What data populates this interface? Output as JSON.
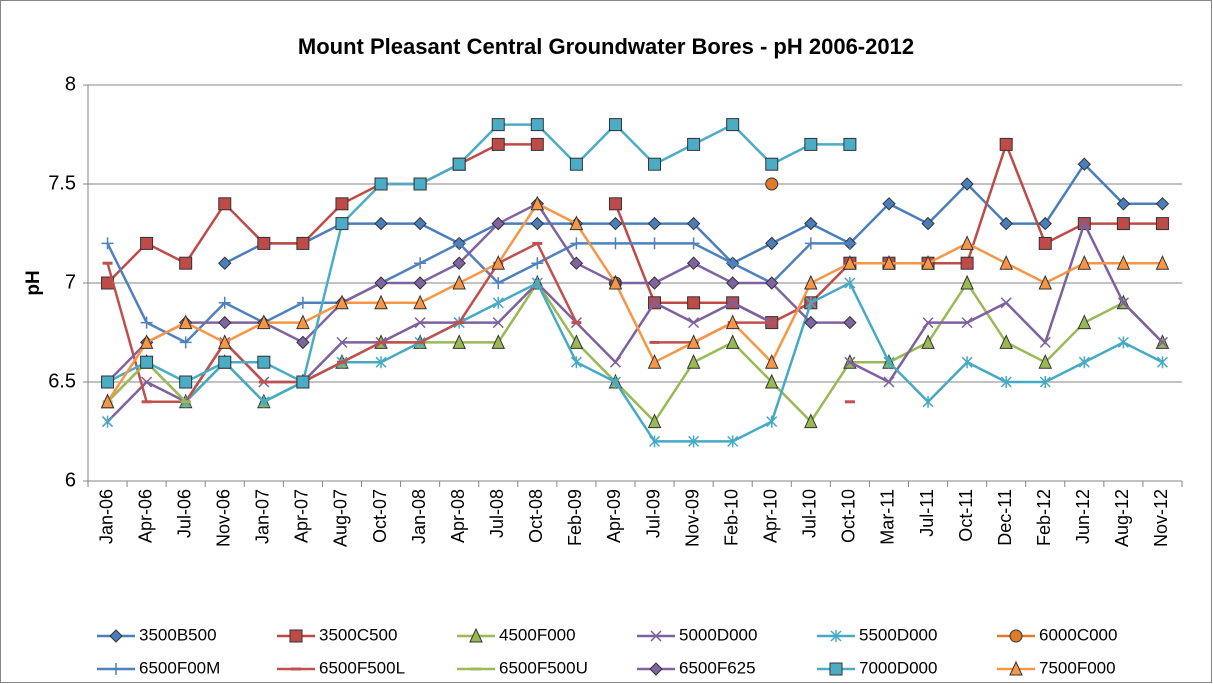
{
  "chart_data": {
    "type": "line",
    "title": "Mount Pleasant Central Groundwater Bores - pH 2006-2012",
    "y_label": "pH",
    "categories": [
      "Jan-06",
      "Apr-06",
      "Jul-06",
      "Nov-06",
      "Jan-07",
      "Apr-07",
      "Aug-07",
      "Oct-07",
      "Jan-08",
      "Apr-08",
      "Jul-08",
      "Oct-08",
      "Feb-09",
      "Apr-09",
      "Jul-09",
      "Nov-09",
      "Feb-10",
      "Apr-10",
      "Jul-10",
      "Oct-10",
      "Mar-11",
      "Jul-11",
      "Oct-11",
      "Dec-11",
      "Feb-12",
      "Jun-12",
      "Aug-12",
      "Nov-12"
    ],
    "ylim": [
      6,
      8
    ],
    "yticks": [
      6,
      6.5,
      7,
      7.5,
      8
    ],
    "grid": true,
    "legend": "bottom",
    "series": [
      {
        "name": "3500B500",
        "color": "#4a7ebb",
        "marker": "diamond",
        "values": [
          null,
          null,
          null,
          7.1,
          7.2,
          7.2,
          7.3,
          7.3,
          7.3,
          7.2,
          7.3,
          7.3,
          7.3,
          7.3,
          7.3,
          7.3,
          7.1,
          7.2,
          7.3,
          7.2,
          7.4,
          7.3,
          7.5,
          7.3,
          7.3,
          7.6,
          7.4,
          7.4
        ]
      },
      {
        "name": "3500C500",
        "color": "#be4b48",
        "marker": "square",
        "values": [
          7.0,
          7.2,
          7.1,
          7.4,
          7.2,
          7.2,
          7.4,
          7.5,
          7.5,
          7.6,
          7.7,
          7.7,
          null,
          7.4,
          6.9,
          6.9,
          6.9,
          6.8,
          6.9,
          7.1,
          7.1,
          7.1,
          7.1,
          7.7,
          7.2,
          7.3,
          7.3,
          7.3
        ]
      },
      {
        "name": "4500F000",
        "color": "#98b954",
        "marker": "triangle",
        "values": [
          6.4,
          6.6,
          6.4,
          6.6,
          6.4,
          6.5,
          6.6,
          6.7,
          6.7,
          6.7,
          6.7,
          7.0,
          6.7,
          6.5,
          6.3,
          6.6,
          6.7,
          6.5,
          6.3,
          6.6,
          6.6,
          6.7,
          7.0,
          6.7,
          6.6,
          6.8,
          6.9,
          6.7
        ]
      },
      {
        "name": "5000D000",
        "color": "#7d60a0",
        "marker": "x",
        "values": [
          6.3,
          6.5,
          6.4,
          6.7,
          6.5,
          6.5,
          6.7,
          6.7,
          6.8,
          6.8,
          6.8,
          7.0,
          6.8,
          6.6,
          6.9,
          6.8,
          6.9,
          6.8,
          null,
          6.6,
          6.5,
          6.8,
          6.8,
          6.9,
          6.7,
          7.3,
          6.9,
          6.7
        ]
      },
      {
        "name": "5500D000",
        "color": "#46aac5",
        "marker": "star",
        "values": [
          6.3,
          null,
          6.4,
          6.6,
          6.4,
          6.5,
          6.6,
          6.6,
          6.7,
          6.8,
          6.9,
          7.0,
          6.6,
          6.5,
          6.2,
          6.2,
          6.2,
          6.3,
          6.9,
          7.0,
          6.6,
          6.4,
          6.6,
          6.5,
          6.5,
          6.6,
          6.7,
          6.6
        ]
      },
      {
        "name": "6000C000",
        "color": "#e07b2e",
        "marker": "circle",
        "values": [
          null,
          null,
          null,
          null,
          null,
          null,
          null,
          null,
          null,
          null,
          null,
          null,
          null,
          7.0,
          null,
          null,
          null,
          7.5,
          null,
          null,
          null,
          null,
          null,
          null,
          null,
          null,
          null,
          null
        ]
      },
      {
        "name": "6500F00M",
        "color": "#4f81bd",
        "marker": "plus",
        "values": [
          7.2,
          6.8,
          6.7,
          6.9,
          6.8,
          6.9,
          6.9,
          7.0,
          7.1,
          7.2,
          7.0,
          7.1,
          7.2,
          7.2,
          7.2,
          7.2,
          7.1,
          7.0,
          7.2,
          7.2,
          null,
          null,
          null,
          null,
          null,
          null,
          null,
          null
        ]
      },
      {
        "name": "6500F500L",
        "color": "#c0504d",
        "marker": "dash",
        "values": [
          7.1,
          6.4,
          6.4,
          6.7,
          6.5,
          6.5,
          6.6,
          6.7,
          6.7,
          6.8,
          7.1,
          7.2,
          6.8,
          null,
          6.7,
          6.7,
          6.8,
          6.8,
          null,
          6.4,
          null,
          null,
          null,
          null,
          null,
          null,
          null,
          null
        ]
      },
      {
        "name": "6500F500U",
        "color": "#9bbb59",
        "marker": "dash",
        "values": [
          6.4,
          6.6,
          6.4,
          null,
          null,
          null,
          null,
          null,
          null,
          null,
          null,
          null,
          null,
          null,
          null,
          null,
          null,
          null,
          null,
          null,
          null,
          null,
          null,
          null,
          null,
          null,
          null,
          null
        ]
      },
      {
        "name": "6500F625",
        "color": "#8064a2",
        "marker": "diamond",
        "values": [
          6.5,
          6.7,
          6.8,
          6.8,
          6.8,
          6.7,
          6.9,
          7.0,
          7.0,
          7.1,
          7.3,
          7.4,
          7.1,
          7.0,
          7.0,
          7.1,
          7.0,
          7.0,
          6.8,
          6.8,
          null,
          null,
          null,
          null,
          null,
          null,
          null,
          null
        ]
      },
      {
        "name": "7000D000",
        "color": "#4bacc6",
        "marker": "square",
        "values": [
          6.5,
          6.6,
          6.5,
          6.6,
          6.6,
          6.5,
          7.3,
          7.5,
          7.5,
          7.6,
          7.8,
          7.8,
          7.6,
          7.8,
          7.6,
          7.7,
          7.8,
          7.6,
          7.7,
          7.7,
          null,
          null,
          null,
          null,
          null,
          null,
          null,
          null
        ]
      },
      {
        "name": "7500F000",
        "color": "#f79646",
        "marker": "triangle",
        "values": [
          6.4,
          6.7,
          6.8,
          6.7,
          6.8,
          6.8,
          6.9,
          6.9,
          6.9,
          7.0,
          7.1,
          7.4,
          7.3,
          7.0,
          6.6,
          6.7,
          6.8,
          6.6,
          7.0,
          7.1,
          7.1,
          7.1,
          7.2,
          7.1,
          7.0,
          7.1,
          7.1,
          7.1
        ]
      }
    ]
  }
}
